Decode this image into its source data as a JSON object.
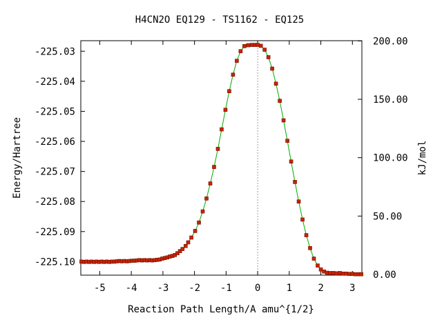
{
  "chart_data": {
    "type": "line",
    "title": "H4CN2O   EQ129 - TS1162 - EQ125",
    "xlabel": "Reaction Path Length/A amu^{1/2}",
    "ylabel": "Energy/Hartree",
    "y2label": "kJ/mol",
    "xlim": [
      -5.6,
      3.3
    ],
    "ylim": [
      -225.1045,
      -225.0265
    ],
    "y2lim": [
      -0.6,
      200.2
    ],
    "x_ticks": [
      -5,
      -4,
      -3,
      -2,
      -1,
      0,
      1,
      2,
      3
    ],
    "x_tick_labels": [
      "-5",
      "-4",
      "-3",
      "-2",
      "-1",
      "0",
      "1",
      "2",
      "3"
    ],
    "y_ticks": [
      -225.03,
      -225.04,
      -225.05,
      -225.06,
      -225.07,
      -225.08,
      -225.09,
      -225.1
    ],
    "y_tick_labels": [
      "-225.03",
      "-225.04",
      "-225.05",
      "-225.06",
      "-225.07",
      "-225.08",
      "-225.09",
      "-225.10"
    ],
    "y2_ticks": [
      200,
      150,
      100,
      50,
      0
    ],
    "y2_tick_labels": [
      "200.00",
      "150.00",
      "100.00",
      "50.00",
      "0.00"
    ],
    "ts_marker_x": 0,
    "grid": false,
    "colors": {
      "curve": "#00aa00",
      "points": "#cc2200",
      "ts_line": "#999999"
    },
    "series": [
      {
        "points": [
          [
            -5.58,
            -225.1
          ],
          [
            -5.5,
            -225.1001
          ],
          [
            -5.42,
            -225.1
          ],
          [
            -5.34,
            -225.1001
          ],
          [
            -5.26,
            -225.1
          ],
          [
            -5.18,
            -225.1001
          ],
          [
            -5.1,
            -225.1
          ],
          [
            -5.02,
            -225.1001
          ],
          [
            -4.94,
            -225.1
          ],
          [
            -4.86,
            -225.1001
          ],
          [
            -4.78,
            -225.1
          ],
          [
            -4.7,
            -225.1001
          ],
          [
            -4.62,
            -225.1
          ],
          [
            -4.54,
            -225.1
          ],
          [
            -4.46,
            -225.0999
          ],
          [
            -4.38,
            -225.0998
          ],
          [
            -4.3,
            -225.0999
          ],
          [
            -4.22,
            -225.0998
          ],
          [
            -4.14,
            -225.0999
          ],
          [
            -4.06,
            -225.0998
          ],
          [
            -3.98,
            -225.0997
          ],
          [
            -3.9,
            -225.0997
          ],
          [
            -3.82,
            -225.0996
          ],
          [
            -3.74,
            -225.0995
          ],
          [
            -3.66,
            -225.0996
          ],
          [
            -3.58,
            -225.0995
          ],
          [
            -3.5,
            -225.0996
          ],
          [
            -3.42,
            -225.0995
          ],
          [
            -3.34,
            -225.0996
          ],
          [
            -3.26,
            -225.0995
          ],
          [
            -3.18,
            -225.0994
          ],
          [
            -3.1,
            -225.0993
          ],
          [
            -3.02,
            -225.099
          ],
          [
            -2.94,
            -225.0988
          ],
          [
            -2.86,
            -225.0986
          ],
          [
            -2.78,
            -225.0983
          ],
          [
            -2.7,
            -225.0981
          ],
          [
            -2.62,
            -225.0978
          ],
          [
            -2.54,
            -225.0972
          ],
          [
            -2.46,
            -225.0965
          ],
          [
            -2.38,
            -225.0958
          ],
          [
            -2.28,
            -225.0948
          ],
          [
            -2.2,
            -225.0936
          ],
          [
            -2.1,
            -225.092
          ],
          [
            -1.98,
            -225.0898
          ],
          [
            -1.86,
            -225.087
          ],
          [
            -1.74,
            -225.0833
          ],
          [
            -1.62,
            -225.079
          ],
          [
            -1.5,
            -225.074
          ],
          [
            -1.38,
            -225.0685
          ],
          [
            -1.26,
            -225.0625
          ],
          [
            -1.14,
            -225.056
          ],
          [
            -1.02,
            -225.0495
          ],
          [
            -0.9,
            -225.0433
          ],
          [
            -0.78,
            -225.0378
          ],
          [
            -0.66,
            -225.0332
          ],
          [
            -0.54,
            -225.03
          ],
          [
            -0.42,
            -225.0283
          ],
          [
            -0.3,
            -225.028
          ],
          [
            -0.18,
            -225.0279
          ],
          [
            -0.08,
            -225.0279
          ],
          [
            0.0,
            -225.0279
          ],
          [
            0.1,
            -225.0282
          ],
          [
            0.22,
            -225.0295
          ],
          [
            0.34,
            -225.032
          ],
          [
            0.46,
            -225.0358
          ],
          [
            0.58,
            -225.0408
          ],
          [
            0.7,
            -225.0465
          ],
          [
            0.82,
            -225.053
          ],
          [
            0.94,
            -225.0598
          ],
          [
            1.06,
            -225.0667
          ],
          [
            1.18,
            -225.0735
          ],
          [
            1.3,
            -225.08
          ],
          [
            1.42,
            -225.086
          ],
          [
            1.54,
            -225.0912
          ],
          [
            1.66,
            -225.0955
          ],
          [
            1.78,
            -225.099
          ],
          [
            1.9,
            -225.1013
          ],
          [
            2.0,
            -225.1026
          ],
          [
            2.1,
            -225.1033
          ],
          [
            2.2,
            -225.1037
          ],
          [
            2.3,
            -225.1038
          ],
          [
            2.4,
            -225.1038
          ],
          [
            2.5,
            -225.1039
          ],
          [
            2.6,
            -225.1038
          ],
          [
            2.7,
            -225.104
          ],
          [
            2.8,
            -225.104
          ],
          [
            2.9,
            -225.1041
          ],
          [
            3.0,
            -225.1041
          ],
          [
            3.1,
            -225.1042
          ],
          [
            3.2,
            -225.1042
          ],
          [
            3.28,
            -225.1042
          ]
        ]
      }
    ]
  }
}
